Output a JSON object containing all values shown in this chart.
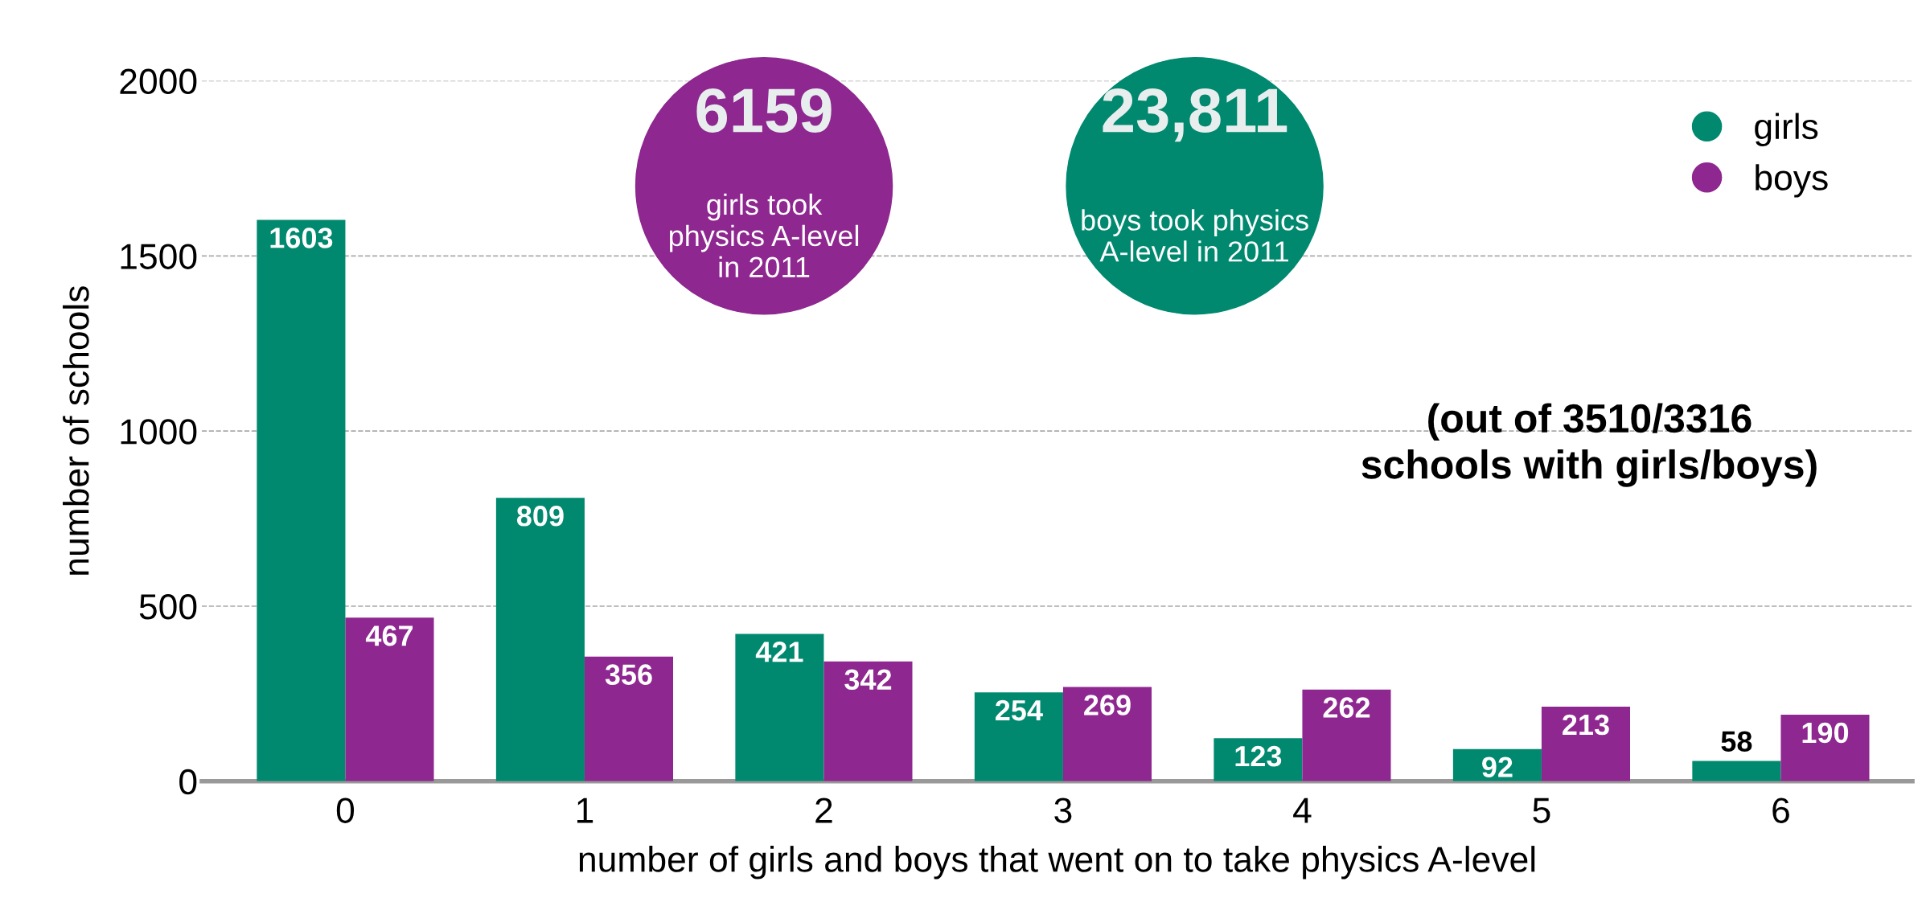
{
  "chart_data": {
    "type": "bar",
    "xlabel": "number of girls and boys that went on to take physics A-level",
    "ylabel": "number of schools",
    "categories": [
      "0",
      "1",
      "2",
      "3",
      "4",
      "5",
      "6"
    ],
    "series": [
      {
        "name": "girls",
        "color": "#00896f",
        "values": [
          1603,
          809,
          421,
          254,
          123,
          92,
          58
        ]
      },
      {
        "name": "boys",
        "color": "#8e278f",
        "values": [
          467,
          356,
          342,
          269,
          262,
          213,
          190
        ]
      }
    ],
    "ylim": [
      0,
      2000
    ],
    "yticks": [
      0,
      500,
      1000,
      1500,
      2000
    ],
    "grid": "y",
    "legend": "top right",
    "data_labels": true,
    "annotations": [
      "6159",
      "girls took\nphysics A-level\nin 2011",
      "23,811",
      "boys took physics\nA-level in 2011",
      "(out of 3510/3316\nschools with girls/boys)"
    ]
  }
}
